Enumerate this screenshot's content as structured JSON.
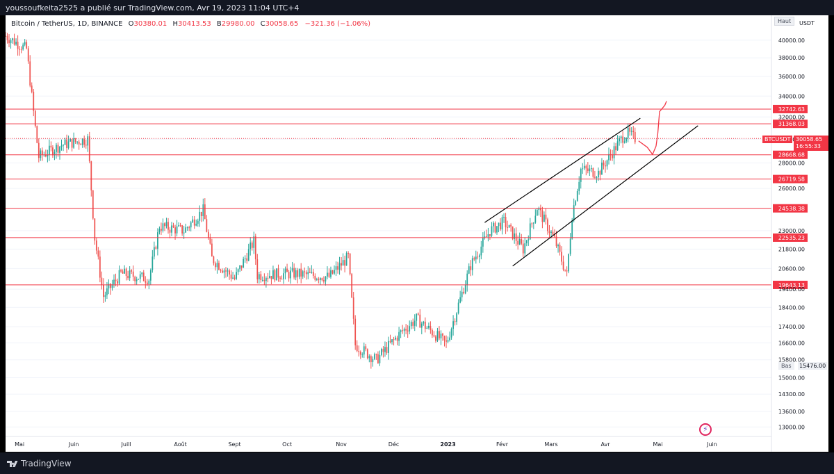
{
  "publisher_line": "youssoufkeita2525 a publié sur TradingView.com, Avr 19, 2023 11:04 UTC+4",
  "brand": "TradingView",
  "legend": {
    "symbol": "Bitcoin / TetherUS, 1D, BINANCE",
    "open_label": "O",
    "open": "30380.01",
    "high_label": "H",
    "high": "30413.53",
    "low_label": "B",
    "low": "29980.00",
    "close_label": "C",
    "close": "30058.65",
    "change": "−321.36 (−1.06%)"
  },
  "price_axis": {
    "currency": "USDT",
    "high_label": "Haut",
    "low_label": "Bas",
    "low_value": "15476.00",
    "ticks": [
      "40000.00",
      "38000.00",
      "36000.00",
      "34000.00",
      "32000.00",
      "30000.00",
      "28000.00",
      "26000.00",
      "23000.00",
      "21800.00",
      "20600.00",
      "19400.00",
      "18400.00",
      "17400.00",
      "16600.00",
      "15800.00",
      "15000.00",
      "14300.00",
      "13600.00",
      "13000.00"
    ],
    "current_symbol": "BTCUSDT",
    "current_price": "30058.65",
    "countdown": "16:55:33"
  },
  "time_axis": [
    "Mai",
    "Juin",
    "Juill",
    "Août",
    "Sept",
    "Oct",
    "Nov",
    "Déc",
    "2023",
    "Févr",
    "Mars",
    "Avr",
    "Mai",
    "Juin"
  ],
  "colors": {
    "up": "#26a69a",
    "down": "#ef5350",
    "level_line": "#f23645",
    "channel": "#000000",
    "projection": "#f23645"
  },
  "chart_data": {
    "type": "candlestick",
    "title": "Bitcoin / TetherUS, 1D, BINANCE",
    "x_range": [
      "2022-04-23",
      "2023-07-05"
    ],
    "y_scale": "log",
    "y_range": [
      12800,
      43000
    ],
    "horizontal_levels": [
      "32742.63",
      "31368.03",
      "28668.68",
      "26719.58",
      "24538.38",
      "22535.23",
      "19643.13"
    ],
    "anchors": [
      {
        "date": "2022-04-23",
        "price": 40500
      },
      {
        "date": "2022-05-05",
        "price": 39000
      },
      {
        "date": "2022-05-10",
        "price": 31000
      },
      {
        "date": "2022-05-12",
        "price": 28500
      },
      {
        "date": "2022-05-25",
        "price": 29500
      },
      {
        "date": "2022-06-09",
        "price": 30000
      },
      {
        "date": "2022-06-13",
        "price": 22500
      },
      {
        "date": "2022-06-18",
        "price": 19000
      },
      {
        "date": "2022-06-28",
        "price": 20300
      },
      {
        "date": "2022-07-14",
        "price": 20000
      },
      {
        "date": "2022-07-20",
        "price": 23300
      },
      {
        "date": "2022-08-03",
        "price": 23000
      },
      {
        "date": "2022-08-14",
        "price": 24400
      },
      {
        "date": "2022-08-19",
        "price": 21200
      },
      {
        "date": "2022-09-01",
        "price": 20000
      },
      {
        "date": "2022-09-12",
        "price": 22300
      },
      {
        "date": "2022-09-14",
        "price": 20200
      },
      {
        "date": "2022-10-05",
        "price": 20300
      },
      {
        "date": "2022-10-25",
        "price": 20100
      },
      {
        "date": "2022-11-05",
        "price": 21300
      },
      {
        "date": "2022-11-09",
        "price": 16500
      },
      {
        "date": "2022-11-21",
        "price": 15800
      },
      {
        "date": "2022-12-05",
        "price": 17100
      },
      {
        "date": "2022-12-14",
        "price": 17800
      },
      {
        "date": "2022-12-31",
        "price": 16550
      },
      {
        "date": "2023-01-14",
        "price": 20800
      },
      {
        "date": "2023-01-25",
        "price": 23000
      },
      {
        "date": "2023-02-02",
        "price": 23600
      },
      {
        "date": "2023-02-13",
        "price": 21800
      },
      {
        "date": "2023-02-21",
        "price": 24600
      },
      {
        "date": "2023-03-03",
        "price": 22400
      },
      {
        "date": "2023-03-10",
        "price": 20200
      },
      {
        "date": "2023-03-13",
        "price": 24100
      },
      {
        "date": "2023-03-18",
        "price": 27500
      },
      {
        "date": "2023-03-28",
        "price": 27200
      },
      {
        "date": "2023-04-11",
        "price": 30200
      },
      {
        "date": "2023-04-14",
        "price": 30500
      },
      {
        "date": "2023-04-18",
        "price": 30058.65
      }
    ],
    "channel_lines": [
      {
        "start": {
          "date": "2023-01-22",
          "price": 23550
        },
        "end": {
          "date": "2023-04-21",
          "price": 31880
        }
      },
      {
        "start": {
          "date": "2023-02-07",
          "price": 20750
        },
        "end": {
          "date": "2023-05-24",
          "price": 31200
        }
      }
    ],
    "projection_path": [
      {
        "date": "2023-04-20",
        "price": 29850
      },
      {
        "date": "2023-04-25",
        "price": 29300
      },
      {
        "date": "2023-04-28",
        "price": 28700
      },
      {
        "date": "2023-04-30",
        "price": 29400
      },
      {
        "date": "2023-05-01",
        "price": 30500
      },
      {
        "date": "2023-05-02",
        "price": 32500
      },
      {
        "date": "2023-05-05",
        "price": 33100
      },
      {
        "date": "2023-05-06",
        "price": 33500
      }
    ]
  }
}
